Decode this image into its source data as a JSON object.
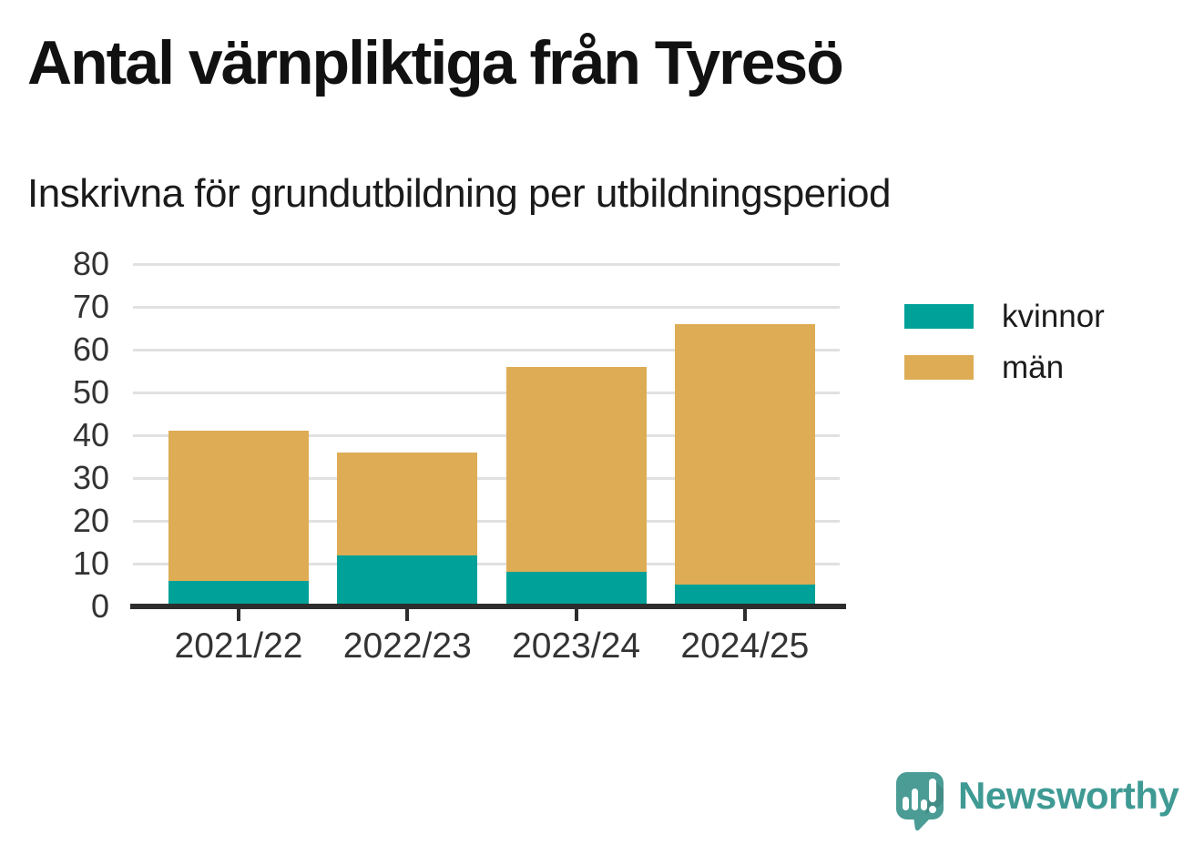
{
  "header": {
    "title": "Antal värnpliktiga från Tyresö",
    "subtitle": "Inskrivna för grundutbildning per utbildningsperiod"
  },
  "chart_data": {
    "type": "bar",
    "stacked": true,
    "title": "Antal värnpliktiga från Tyresö",
    "subtitle": "Inskrivna för grundutbildning per utbildningsperiod",
    "categories": [
      "2021/22",
      "2022/23",
      "2023/24",
      "2024/25"
    ],
    "series": [
      {
        "name": "kvinnor",
        "color": "#00A198",
        "values": [
          6,
          12,
          8,
          5
        ]
      },
      {
        "name": "män",
        "color": "#DDAC55",
        "values": [
          35,
          24,
          48,
          61
        ]
      }
    ],
    "stack_totals": [
      41,
      36,
      56,
      66
    ],
    "xlabel": "",
    "ylabel": "",
    "ylim": [
      0,
      80
    ],
    "yticks": [
      0,
      10,
      20,
      30,
      40,
      50,
      60,
      70,
      80
    ],
    "grid": true,
    "legend_position": "right",
    "grid_color": "#e1e1e1",
    "axis_color": "#2d2d2d",
    "tick_label_color": "#333333"
  },
  "footer": {
    "logo_text": "Newsworthy",
    "logo_color": "#3f9a94"
  }
}
